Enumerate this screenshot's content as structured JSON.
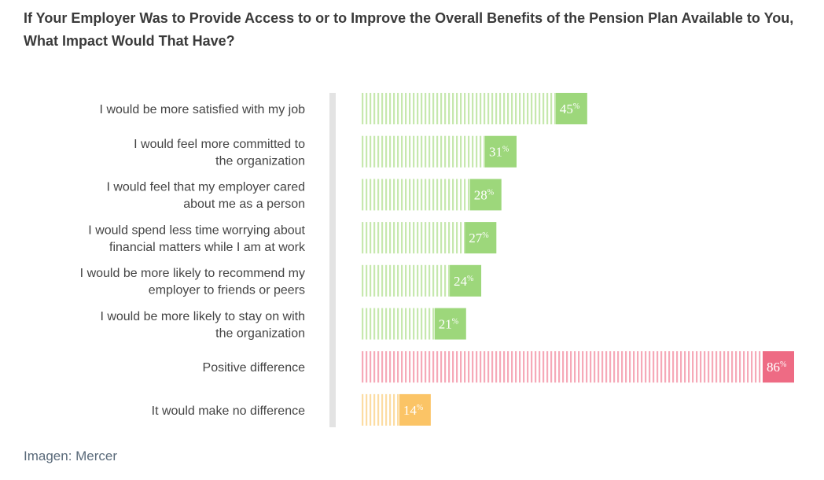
{
  "title": "If Your Employer Was to Provide Access to or to Improve the Overall Benefits of the Pension Plan Available to You, What Impact Would That Have?",
  "source": "Imagen: Mercer",
  "colors": {
    "green": "#9dd77b",
    "green_light": "#c6e8ae",
    "pink": "#ee6b84",
    "pink_light": "#f6a9b8",
    "yellow": "#fbc466",
    "yellow_light": "#fcdca2",
    "axis": "#e3e3e3"
  },
  "chart_data": {
    "type": "bar",
    "orientation": "horizontal",
    "unit": "%",
    "xlim": [
      0,
      86
    ],
    "categories": [
      [
        "I would be more satisfied with my job"
      ],
      [
        "I would feel more committed to",
        "the organization"
      ],
      [
        "I would feel that my employer cared",
        "about me as a person"
      ],
      [
        "I would spend less time worrying about",
        "financial matters while I am at work"
      ],
      [
        "I would be more likely to recommend my",
        "employer to friends or peers"
      ],
      [
        "I would be more likely to stay on with",
        "the organization"
      ],
      [
        "Positive difference"
      ],
      [
        "It would make no difference"
      ]
    ],
    "values": [
      45,
      31,
      28,
      27,
      24,
      21,
      86,
      14
    ],
    "bar_colors": [
      "green",
      "green",
      "green",
      "green",
      "green",
      "green",
      "pink",
      "yellow"
    ]
  }
}
